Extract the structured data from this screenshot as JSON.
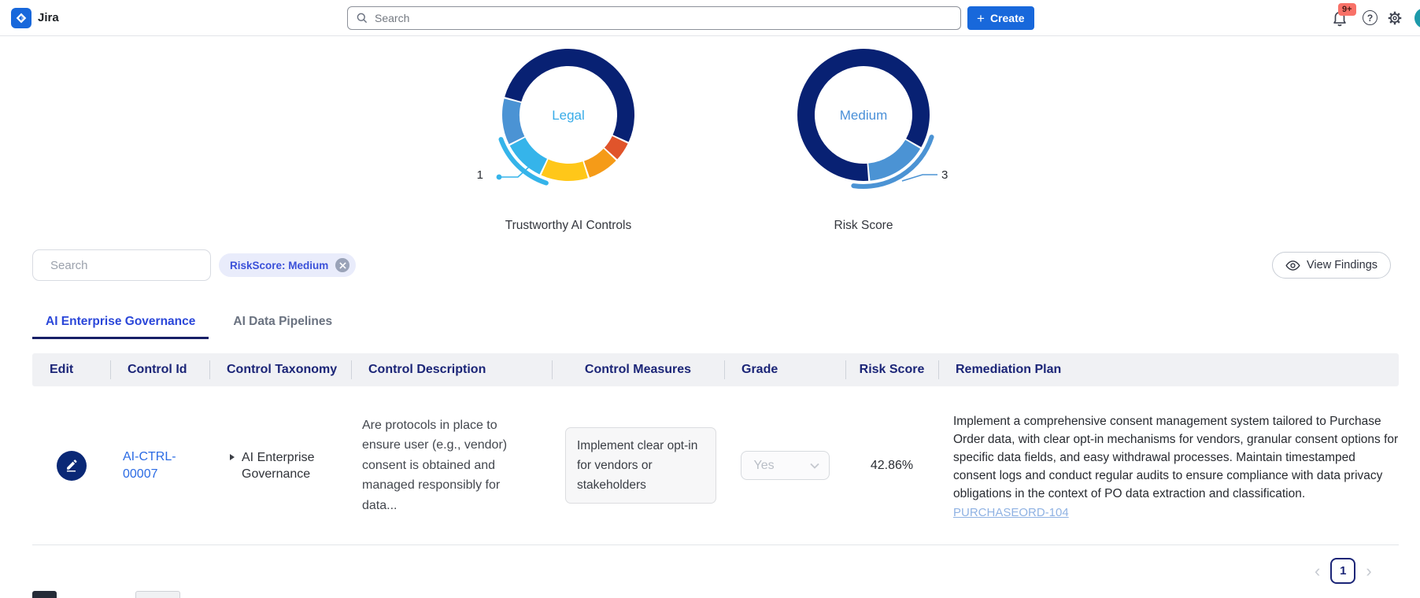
{
  "topbar": {
    "app_name": "Jira",
    "search_placeholder": "Search",
    "create_label": "Create",
    "notification_badge": "9+"
  },
  "chart_data": [
    {
      "type": "donut",
      "title": "Trustworthy AI Controls",
      "center_label": "Legal",
      "center_color": "#38ACE8",
      "callout_value": "1",
      "segments": [
        {
          "color": "#082173",
          "start": 285,
          "end": 475
        },
        {
          "color": "#E0542B",
          "start": 115,
          "end": 133
        },
        {
          "color": "#F59B18",
          "start": 133,
          "end": 162
        },
        {
          "color": "#FFC719",
          "start": 162,
          "end": 205
        },
        {
          "label": "Legal",
          "color": "#35B4EA",
          "start": 205,
          "end": 243,
          "highlighted": true,
          "value": 1
        },
        {
          "color": "#4B93D4",
          "start": 243,
          "end": 285
        }
      ],
      "highlight_arc": {
        "start": 198,
        "end": 250,
        "color": "#35B4EA"
      }
    },
    {
      "type": "donut",
      "title": "Risk Score",
      "center_label": "Medium",
      "center_color": "#4A90D8",
      "callout_value": "3",
      "segments": [
        {
          "color": "#082173",
          "start": 175,
          "end": 480
        },
        {
          "label": "Medium",
          "color": "#4B93D4",
          "start": 120,
          "end": 175,
          "highlighted": true,
          "value": 3
        }
      ],
      "highlight_arc": {
        "start": 108,
        "end": 188,
        "color": "#4B93D4"
      }
    }
  ],
  "filters": {
    "search_placeholder": "Search",
    "chip_label": "RiskScore: Medium"
  },
  "view_findings_label": "View Findings",
  "tabs": [
    {
      "label": "AI Enterprise Governance",
      "active": true
    },
    {
      "label": "AI Data Pipelines",
      "active": false
    }
  ],
  "table": {
    "columns": [
      "Edit",
      "Control Id",
      "Control Taxonomy",
      "Control Description",
      "Control Measures",
      "Grade",
      "Risk Score",
      "Remediation Plan"
    ],
    "rows": [
      {
        "control_id": "AI-CTRL-00007",
        "control_taxonomy": "AI Enterprise Governance",
        "control_description": "Are protocols in place to ensure user (e.g., vendor) consent is obtained and managed responsibly for data...",
        "control_measures": [
          "Implement clear opt-in for vendors or stakeholders"
        ],
        "grade": "Yes",
        "risk_score": "42.86%",
        "remediation_plan": "Implement a comprehensive consent management system tailored to Purchase Order data, with clear opt-in mechanisms for vendors, granular consent options for specific data fields, and easy withdrawal processes. Maintain timestamped consent logs and conduct regular audits to ensure compliance with data privacy obligations in the context of PO data extraction and classification.",
        "remediation_link": "PURCHASEORD-104"
      }
    ]
  },
  "pagination": {
    "current_page": "1"
  }
}
